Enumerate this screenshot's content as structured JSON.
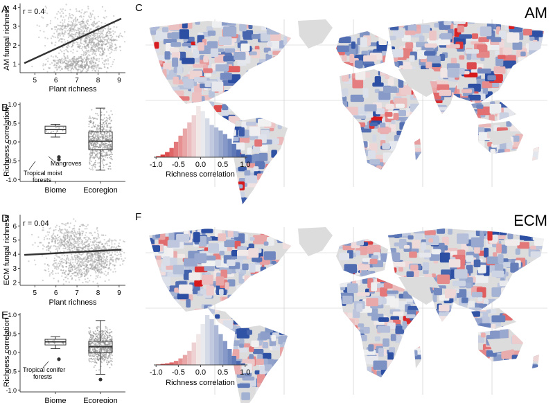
{
  "panels": {
    "A": "A",
    "B": "B",
    "C": "C",
    "D": "D",
    "E": "E",
    "F": "F"
  },
  "chart_data": [
    {
      "type": "scatter",
      "panel": "A",
      "annotation": "r = 0.4",
      "xlabel": "Plant richness",
      "ylabel": "AM fungal richness",
      "xlim": [
        4.3,
        9.3
      ],
      "ylim": [
        0.55,
        4.2
      ],
      "xticks": [
        5,
        6,
        7,
        8,
        9
      ],
      "yticks": [
        1,
        2,
        3,
        4
      ],
      "regression": {
        "x": [
          4.5,
          9.1
        ],
        "y": [
          1.05,
          3.4
        ]
      },
      "clusters": [
        {
          "cx": 6.9,
          "cy": 2.8,
          "sx": 0.75,
          "sy": 0.55
        },
        {
          "cx": 7.0,
          "cy": 1.0,
          "sx": 0.65,
          "sy": 0.25
        },
        {
          "cx": 8.0,
          "cy": 2.2,
          "sx": 0.5,
          "sy": 0.45
        }
      ],
      "point_color": "#9a9a9a"
    },
    {
      "type": "box",
      "panel": "B",
      "ylabel": "Richness correlation",
      "ylim": [
        -1.05,
        1.05
      ],
      "yticks": [
        -1.0,
        -0.5,
        0.0,
        0.5,
        1.0
      ],
      "categories": [
        "Biome",
        "Ecoregion"
      ],
      "boxes": [
        {
          "name": "Biome",
          "min": 0.13,
          "q1": 0.23,
          "median": 0.33,
          "q3": 0.42,
          "max": 0.47,
          "outliers": [
            -0.4,
            -0.47
          ]
        },
        {
          "name": "Ecoregion",
          "min": -0.75,
          "q1": -0.2,
          "median": 0.02,
          "q3": 0.27,
          "max": 0.9
        }
      ],
      "annotations": [
        "Mangroves",
        "Tropical moist\nforests"
      ]
    },
    {
      "type": "map",
      "panel": "C",
      "title": "AM",
      "histogram": {
        "xlabel": "Richness correlation",
        "xticks": [
          -1.0,
          -0.5,
          0.0,
          0.5,
          1.0
        ],
        "bins": [
          -0.95,
          -0.85,
          -0.75,
          -0.65,
          -0.55,
          -0.45,
          -0.35,
          -0.25,
          -0.15,
          -0.05,
          0.05,
          0.15,
          0.25,
          0.35,
          0.45,
          0.55,
          0.65,
          0.75,
          0.85,
          0.95
        ],
        "counts": [
          2,
          5,
          10,
          18,
          30,
          42,
          56,
          68,
          82,
          100,
          90,
          76,
          63,
          58,
          52,
          45,
          36,
          26,
          15,
          6
        ]
      }
    },
    {
      "type": "scatter",
      "panel": "D",
      "annotation": "r = 0.04",
      "xlabel": "Plant richness",
      "ylabel": "ECM fungal richness",
      "xlim": [
        4.3,
        9.3
      ],
      "ylim": [
        1.8,
        6.8
      ],
      "xticks": [
        5,
        6,
        7,
        8,
        9
      ],
      "yticks": [
        2,
        3,
        4,
        5,
        6
      ],
      "regression": {
        "x": [
          4.5,
          9.1
        ],
        "y": [
          3.95,
          4.32
        ]
      },
      "clusters": [
        {
          "cx": 6.7,
          "cy": 5.0,
          "sx": 0.7,
          "sy": 0.55
        },
        {
          "cx": 7.1,
          "cy": 3.1,
          "sx": 0.75,
          "sy": 0.5
        },
        {
          "cx": 8.0,
          "cy": 4.0,
          "sx": 0.55,
          "sy": 0.6
        }
      ],
      "point_color": "#9a9a9a"
    },
    {
      "type": "box",
      "panel": "E",
      "ylabel": "Richness correlation",
      "ylim": [
        -1.05,
        1.05
      ],
      "yticks": [
        -1.0,
        -0.5,
        0.0,
        0.5,
        1.0
      ],
      "categories": [
        "Biome",
        "Ecoregion"
      ],
      "boxes": [
        {
          "name": "Biome",
          "min": 0.1,
          "q1": 0.2,
          "median": 0.28,
          "q3": 0.35,
          "max": 0.42,
          "outliers": [
            -0.18
          ]
        },
        {
          "name": "Ecoregion",
          "min": -0.58,
          "q1": 0.0,
          "median": 0.15,
          "q3": 0.3,
          "max": 0.85,
          "outliers": [
            -0.72
          ]
        }
      ],
      "annotations": [
        "Tropical conifer\nforests"
      ]
    },
    {
      "type": "map",
      "panel": "F",
      "title": "ECM",
      "histogram": {
        "xlabel": "Richness correlation",
        "xticks": [
          -1.0,
          -0.5,
          0.0,
          0.5,
          1.0
        ],
        "bins": [
          -0.95,
          -0.85,
          -0.75,
          -0.65,
          -0.55,
          -0.45,
          -0.35,
          -0.25,
          -0.15,
          -0.05,
          0.05,
          0.15,
          0.25,
          0.35,
          0.45,
          0.55,
          0.65,
          0.75,
          0.85,
          0.95
        ],
        "counts": [
          1,
          2,
          3,
          5,
          8,
          13,
          20,
          28,
          45,
          62,
          82,
          100,
          92,
          80,
          62,
          48,
          32,
          18,
          8,
          3
        ]
      }
    }
  ],
  "colors": {
    "negative_strong": "#d7191c",
    "neutral": "#f2f2f2",
    "positive_strong": "#2c4fa3",
    "land_nodata": "#dcdcdc",
    "graticule": "#c8c8c8"
  }
}
